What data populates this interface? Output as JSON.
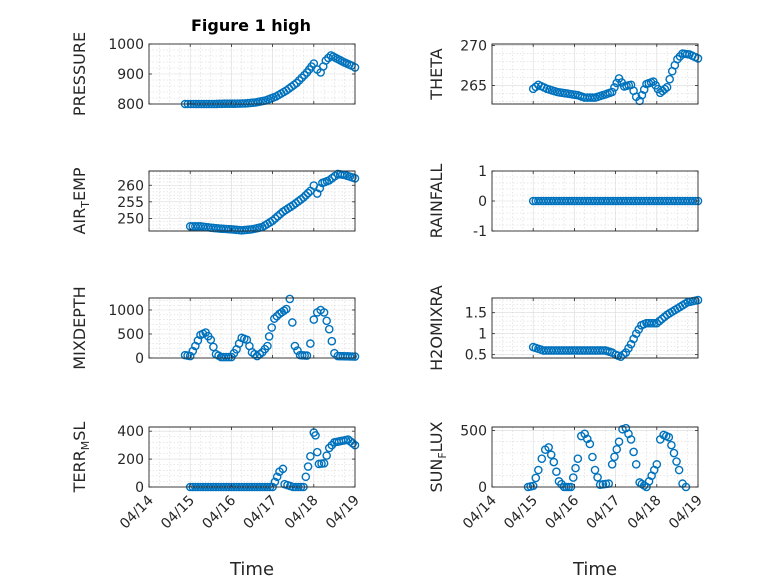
{
  "figure": {
    "title": "Figure 1 high",
    "marker_color": "#0072bd",
    "axis_color": "#262626",
    "grid_color": "#d9d9d9"
  },
  "chart_data": [
    {
      "type": "scatter",
      "title": "Figure 1 high",
      "ylabel": "PRESSURE",
      "xlabel": "",
      "xlim": [
        "04/14",
        "04/19"
      ],
      "xticks": [
        "04/14",
        "04/15",
        "04/16",
        "04/17",
        "04/18",
        "04/19"
      ],
      "ylim": [
        800,
        1000
      ],
      "yticks": [
        800,
        900,
        1000
      ],
      "grid": true,
      "points": [
        [
          "04/14 21:00",
          800
        ],
        [
          "04/15 02:00",
          800
        ],
        [
          "04/15 08:00",
          800
        ],
        [
          "04/15 14:00",
          800
        ],
        [
          "04/15 20:00",
          801
        ],
        [
          "04/16 02:00",
          801
        ],
        [
          "04/16 08:00",
          802
        ],
        [
          "04/16 14:00",
          805
        ],
        [
          "04/16 20:00",
          812
        ],
        [
          "04/17 02:00",
          825
        ],
        [
          "04/17 08:00",
          845
        ],
        [
          "04/17 14:00",
          870
        ],
        [
          "04/17 20:00",
          905
        ],
        [
          "04/18 00:00",
          935
        ],
        [
          "04/18 02:00",
          915
        ],
        [
          "04/18 04:00",
          905
        ],
        [
          "04/18 07:00",
          945
        ],
        [
          "04/18 10:00",
          962
        ],
        [
          "04/18 14:00",
          950
        ],
        [
          "04/18 18:00",
          938
        ],
        [
          "04/18 22:00",
          928
        ],
        [
          "04/19 00:00",
          922
        ]
      ]
    },
    {
      "type": "scatter",
      "title": "",
      "ylabel": "THETA",
      "xlabel": "",
      "xlim": [
        "04/14",
        "04/19"
      ],
      "xticks": [
        "04/14",
        "04/15",
        "04/16",
        "04/17",
        "04/18",
        "04/19"
      ],
      "ylim": [
        262.7,
        270.2
      ],
      "yticks": [
        265,
        270
      ],
      "grid": true,
      "points": [
        [
          "04/15 00:00",
          264.6
        ],
        [
          "04/15 03:00",
          265.1
        ],
        [
          "04/15 08:00",
          264.6
        ],
        [
          "04/15 14:00",
          264.2
        ],
        [
          "04/15 20:00",
          264.0
        ],
        [
          "04/16 02:00",
          263.8
        ],
        [
          "04/16 06:00",
          263.5
        ],
        [
          "04/16 12:00",
          263.5
        ],
        [
          "04/16 18:00",
          263.9
        ],
        [
          "04/16 22:00",
          264.2
        ],
        [
          "04/17 02:00",
          265.9
        ],
        [
          "04/17 05:00",
          264.9
        ],
        [
          "04/17 09:00",
          265.1
        ],
        [
          "04/17 12:00",
          263.6
        ],
        [
          "04/17 14:00",
          263.1
        ],
        [
          "04/17 18:00",
          265.2
        ],
        [
          "04/17 22:00",
          265.5
        ],
        [
          "04/18 02:00",
          264.1
        ],
        [
          "04/18 06:00",
          264.8
        ],
        [
          "04/18 09:00",
          266.8
        ],
        [
          "04/18 12:00",
          268.3
        ],
        [
          "04/18 15:00",
          269.0
        ],
        [
          "04/18 19:00",
          268.9
        ],
        [
          "04/19 00:00",
          268.4
        ]
      ]
    },
    {
      "type": "scatter",
      "title": "",
      "ylabel": "AIR_TEMP",
      "ylabel_main_1": "AIR",
      "ylabel_sub": "T",
      "ylabel_main_2": "EMP",
      "xlabel": "",
      "xlim": [
        "04/14",
        "04/19"
      ],
      "xticks": [
        "04/14",
        "04/15",
        "04/16",
        "04/17",
        "04/18",
        "04/19"
      ],
      "ylim": [
        246.2,
        264.3
      ],
      "yticks": [
        250,
        255,
        260
      ],
      "grid": true,
      "points": [
        [
          "04/15 00:00",
          247.6
        ],
        [
          "04/15 06:00",
          247.6
        ],
        [
          "04/15 12:00",
          247.2
        ],
        [
          "04/15 18:00",
          246.9
        ],
        [
          "04/16 00:00",
          246.7
        ],
        [
          "04/16 06:00",
          246.4
        ],
        [
          "04/16 12:00",
          246.7
        ],
        [
          "04/16 18:00",
          247.4
        ],
        [
          "04/17 00:00",
          249.3
        ],
        [
          "04/17 06:00",
          252.0
        ],
        [
          "04/17 12:00",
          254.0
        ],
        [
          "04/17 18:00",
          256.3
        ],
        [
          "04/17 22:00",
          258.3
        ],
        [
          "04/18 00:00",
          259.9
        ],
        [
          "04/18 02:00",
          257.5
        ],
        [
          "04/18 05:00",
          260.7
        ],
        [
          "04/18 09:00",
          261.5
        ],
        [
          "04/18 14:00",
          263.4
        ],
        [
          "04/18 18:00",
          263.1
        ],
        [
          "04/19 00:00",
          262.1
        ]
      ]
    },
    {
      "type": "scatter",
      "title": "",
      "ylabel": "RAINFALL",
      "xlabel": "",
      "xlim": [
        "04/14",
        "04/19"
      ],
      "xticks": [
        "04/14",
        "04/15",
        "04/16",
        "04/17",
        "04/18",
        "04/19"
      ],
      "ylim": [
        -1,
        1
      ],
      "yticks": [
        -1,
        0,
        1
      ],
      "grid": true,
      "points": [
        [
          "04/15 00:00",
          0
        ],
        [
          "04/15 12:00",
          0
        ],
        [
          "04/16 00:00",
          0
        ],
        [
          "04/16 12:00",
          0
        ],
        [
          "04/17 00:00",
          0
        ],
        [
          "04/17 12:00",
          0
        ],
        [
          "04/18 00:00",
          0
        ],
        [
          "04/18 12:00",
          0
        ],
        [
          "04/19 00:00",
          0
        ]
      ]
    },
    {
      "type": "scatter",
      "title": "",
      "ylabel": "MIXDEPTH",
      "xlabel": "",
      "xlim": [
        "04/14",
        "04/19"
      ],
      "xticks": [
        "04/14",
        "04/15",
        "04/16",
        "04/17",
        "04/18",
        "04/19"
      ],
      "ylim": [
        0,
        1250
      ],
      "yticks": [
        0,
        500,
        1000
      ],
      "grid": true,
      "points": [
        [
          "04/14 21:00",
          60
        ],
        [
          "04/15 00:00",
          40
        ],
        [
          "04/15 03:00",
          250
        ],
        [
          "04/15 06:00",
          480
        ],
        [
          "04/15 09:00",
          530
        ],
        [
          "04/15 12:00",
          380
        ],
        [
          "04/15 15:00",
          80
        ],
        [
          "04/15 18:00",
          20
        ],
        [
          "04/16 00:00",
          20
        ],
        [
          "04/16 03:00",
          180
        ],
        [
          "04/16 06:00",
          420
        ],
        [
          "04/16 09:00",
          380
        ],
        [
          "04/16 12:00",
          120
        ],
        [
          "04/16 15:00",
          40
        ],
        [
          "04/16 18:00",
          120
        ],
        [
          "04/16 21:00",
          250
        ],
        [
          "04/16 22:00",
          450
        ],
        [
          "04/17 01:00",
          820
        ],
        [
          "04/17 04:00",
          920
        ],
        [
          "04/17 08:00",
          1020
        ],
        [
          "04/17 10:00",
          1230
        ],
        [
          "04/17 13:00",
          250
        ],
        [
          "04/17 16:00",
          60
        ],
        [
          "04/17 20:00",
          50
        ],
        [
          "04/17 22:00",
          300
        ],
        [
          "04/18 00:00",
          800
        ],
        [
          "04/18 02:00",
          950
        ],
        [
          "04/18 04:00",
          1000
        ],
        [
          "04/18 06:00",
          950
        ],
        [
          "04/18 09:00",
          600
        ],
        [
          "04/18 12:00",
          100
        ],
        [
          "04/18 14:00",
          40
        ],
        [
          "04/19 00:00",
          30
        ]
      ]
    },
    {
      "type": "scatter",
      "title": "",
      "ylabel": "H2OMIXRA",
      "xlabel": "",
      "xlim": [
        "04/14",
        "04/19"
      ],
      "xticks": [
        "04/14",
        "04/15",
        "04/16",
        "04/17",
        "04/18",
        "04/19"
      ],
      "ylim": [
        0.42,
        1.85
      ],
      "yticks": [
        0.5,
        1,
        1.5
      ],
      "grid": true,
      "points": [
        [
          "04/15 00:00",
          0.68
        ],
        [
          "04/15 06:00",
          0.6
        ],
        [
          "04/15 12:00",
          0.6
        ],
        [
          "04/16 00:00",
          0.6
        ],
        [
          "04/16 12:00",
          0.6
        ],
        [
          "04/16 18:00",
          0.6
        ],
        [
          "04/16 22:00",
          0.55
        ],
        [
          "04/17 00:00",
          0.5
        ],
        [
          "04/17 03:00",
          0.45
        ],
        [
          "04/17 06:00",
          0.55
        ],
        [
          "04/17 09:00",
          0.75
        ],
        [
          "04/17 12:00",
          1.0
        ],
        [
          "04/17 15:00",
          1.2
        ],
        [
          "04/17 18:00",
          1.25
        ],
        [
          "04/18 00:00",
          1.25
        ],
        [
          "04/18 06:00",
          1.45
        ],
        [
          "04/18 12:00",
          1.6
        ],
        [
          "04/18 18:00",
          1.75
        ],
        [
          "04/19 00:00",
          1.8
        ]
      ]
    },
    {
      "type": "scatter",
      "title": "",
      "ylabel": "TERR_MSL",
      "ylabel_main_1": "TERR",
      "ylabel_sub": "M",
      "ylabel_main_2": "SL",
      "xlabel": "Time",
      "xlim": [
        "04/14",
        "04/19"
      ],
      "xticks": [
        "04/14",
        "04/15",
        "04/16",
        "04/17",
        "04/18",
        "04/19"
      ],
      "ylim": [
        0,
        430
      ],
      "yticks": [
        0,
        200,
        400
      ],
      "grid": true,
      "points": [
        [
          "04/15 00:00",
          0
        ],
        [
          "04/15 06:00",
          0
        ],
        [
          "04/15 12:00",
          0
        ],
        [
          "04/16 00:00",
          0
        ],
        [
          "04/16 12:00",
          0
        ],
        [
          "04/17 00:00",
          0
        ],
        [
          "04/17 04:00",
          110
        ],
        [
          "04/17 06:00",
          130
        ],
        [
          "04/17 07:00",
          20
        ],
        [
          "04/17 12:00",
          0
        ],
        [
          "04/17 18:00",
          0
        ],
        [
          "04/17 22:00",
          220
        ],
        [
          "04/18 00:00",
          390
        ],
        [
          "04/18 01:00",
          370
        ],
        [
          "04/18 02:00",
          250
        ],
        [
          "04/18 03:00",
          165
        ],
        [
          "04/18 06:00",
          170
        ],
        [
          "04/18 09:00",
          280
        ],
        [
          "04/18 12:00",
          320
        ],
        [
          "04/18 16:00",
          330
        ],
        [
          "04/18 20:00",
          340
        ],
        [
          "04/19 00:00",
          300
        ]
      ]
    },
    {
      "type": "scatter",
      "title": "",
      "ylabel": "SUN_FLUX",
      "ylabel_main_1": "SUN",
      "ylabel_sub": "F",
      "ylabel_main_2": "LUX",
      "xlabel": "Time",
      "xlim": [
        "04/14",
        "04/19"
      ],
      "xticks": [
        "04/14",
        "04/15",
        "04/16",
        "04/17",
        "04/18",
        "04/19"
      ],
      "ylim": [
        0,
        530
      ],
      "yticks": [
        0,
        500
      ],
      "grid": true,
      "points": [
        [
          "04/14 21:00",
          0
        ],
        [
          "04/15 00:00",
          10
        ],
        [
          "04/15 03:00",
          150
        ],
        [
          "04/15 05:00",
          250
        ],
        [
          "04/15 07:00",
          330
        ],
        [
          "04/15 09:00",
          350
        ],
        [
          "04/15 12:00",
          220
        ],
        [
          "04/15 15:00",
          50
        ],
        [
          "04/15 18:00",
          0
        ],
        [
          "04/15 22:00",
          0
        ],
        [
          "04/16 02:00",
          250
        ],
        [
          "04/16 04:00",
          450
        ],
        [
          "04/16 06:00",
          470
        ],
        [
          "04/16 09:00",
          380
        ],
        [
          "04/16 12:00",
          150
        ],
        [
          "04/16 15:00",
          20
        ],
        [
          "04/16 20:00",
          30
        ],
        [
          "04/16 22:00",
          200
        ],
        [
          "04/17 02:00",
          400
        ],
        [
          "04/17 04:00",
          510
        ],
        [
          "04/17 06:00",
          520
        ],
        [
          "04/17 09:00",
          420
        ],
        [
          "04/17 12:00",
          200
        ],
        [
          "04/17 14:00",
          40
        ],
        [
          "04/17 18:00",
          0
        ],
        [
          "04/18 00:00",
          200
        ],
        [
          "04/18 02:00",
          420
        ],
        [
          "04/18 04:00",
          460
        ],
        [
          "04/18 07:00",
          440
        ],
        [
          "04/18 10:00",
          300
        ],
        [
          "04/18 13:00",
          150
        ],
        [
          "04/18 15:00",
          30
        ],
        [
          "04/18 17:00",
          0
        ]
      ]
    }
  ]
}
